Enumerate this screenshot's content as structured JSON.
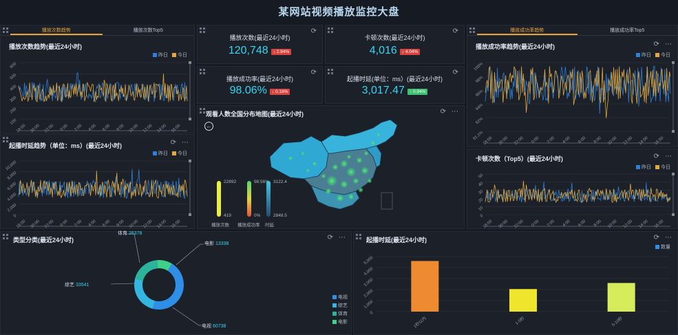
{
  "page_title": "某网站视频播放监控大盘",
  "legend_yesterday": "昨日",
  "legend_today": "今日",
  "colors": {
    "yesterday": "#2e7fd6",
    "today": "#e0a83e",
    "accent": "#37d6f2",
    "up": "#3cbf6e",
    "down": "#d9433f"
  },
  "left_tabs": [
    "播放次数趋势",
    "播放次数Top5"
  ],
  "right_tabs": [
    "播放成功率趋势",
    "播放成功率Top5"
  ],
  "x_time_ticks": [
    "18:00",
    "20:00",
    "22:00",
    "0:00",
    "2:00",
    "4:00",
    "6:00",
    "8:00",
    "10:00",
    "12:00",
    "14:00",
    "16:00"
  ],
  "play_trend": {
    "title": "播放次数趋势(最近24小时)",
    "yticks": [
      "600",
      "500",
      "400",
      "300",
      "200",
      "100"
    ]
  },
  "delay_trend": {
    "title": "起播时延趋势（单位：ms）(最近24小时)",
    "yticks": [
      "10,000",
      "8,000",
      "6,000",
      "4,000",
      "2,000",
      "0"
    ]
  },
  "success_trend": {
    "title": "播放成功率趋势(最近24小时)",
    "yticks": [
      "100%",
      "98%",
      "96%",
      "94%",
      "92%",
      "91.2%"
    ]
  },
  "stall_top5": {
    "title": "卡顿次数（Top5）(最近24小时)",
    "yticks": [
      "50",
      "40",
      "30",
      "20",
      "10",
      "0"
    ]
  },
  "kpis": [
    {
      "label": "播放次数(最近24小时)",
      "value": "120,748",
      "change": "2.94%",
      "dir": "down"
    },
    {
      "label": "卡顿次数(最近24小时)",
      "value": "4,016",
      "change": "4.04%",
      "dir": "down"
    },
    {
      "label": "播放成功率(最近24小时)",
      "value": "98.06%",
      "change": "0.18%",
      "dir": "down"
    },
    {
      "label": "起播时延(单位：ms）(最近24小时)",
      "value": "3,017.47",
      "change": "0.94%",
      "dir": "up"
    }
  ],
  "map": {
    "title": "观看人数全国分布地图(最近24小时)",
    "bars": [
      {
        "name": "播放次数",
        "max": "22892",
        "min": "419",
        "level": 0.6
      },
      {
        "name": "播放成功率",
        "max": "98.56%",
        "min": "0%",
        "level": 0.98
      },
      {
        "name": "时延",
        "max": "3122.4",
        "min": "2848.5",
        "level": 0.45
      }
    ]
  },
  "category": {
    "title": "类型分类(最近24小时)",
    "slices": [
      {
        "name": "电视",
        "value": 60738,
        "color": "#2f8ee6"
      },
      {
        "name": "综艺",
        "value": 33541,
        "color": "#35b6e0"
      },
      {
        "name": "体育",
        "value": 26378,
        "color": "#2bb39b"
      },
      {
        "name": "电影",
        "value": 13338,
        "color": "#3fd18a"
      }
    ],
    "labels": {
      "tv": {
        "name": "电视",
        "value": "60738"
      },
      "variety": {
        "name": "综艺",
        "value": "33541"
      },
      "sports": {
        "name": "体育",
        "value": "26378"
      },
      "movie": {
        "name": "电影",
        "value": "13338"
      }
    }
  },
  "delay_dist": {
    "title": "起播时延(最近24小时)",
    "legend": "数量",
    "yticks": [
      "5,000",
      "4,000",
      "3,000",
      "2,000",
      "1,000",
      "0"
    ]
  },
  "chart_data": {
    "type": "bar",
    "title": "起播时延(最近24小时)",
    "categories": [
      "1秒以内",
      "1-5秒",
      "5-10秒"
    ],
    "values": [
      4600,
      2050,
      2600
    ],
    "colors": [
      "#ee8a30",
      "#eee52c",
      "#d7ec5a"
    ],
    "ylim": [
      0,
      5000
    ],
    "legend": "数量"
  }
}
